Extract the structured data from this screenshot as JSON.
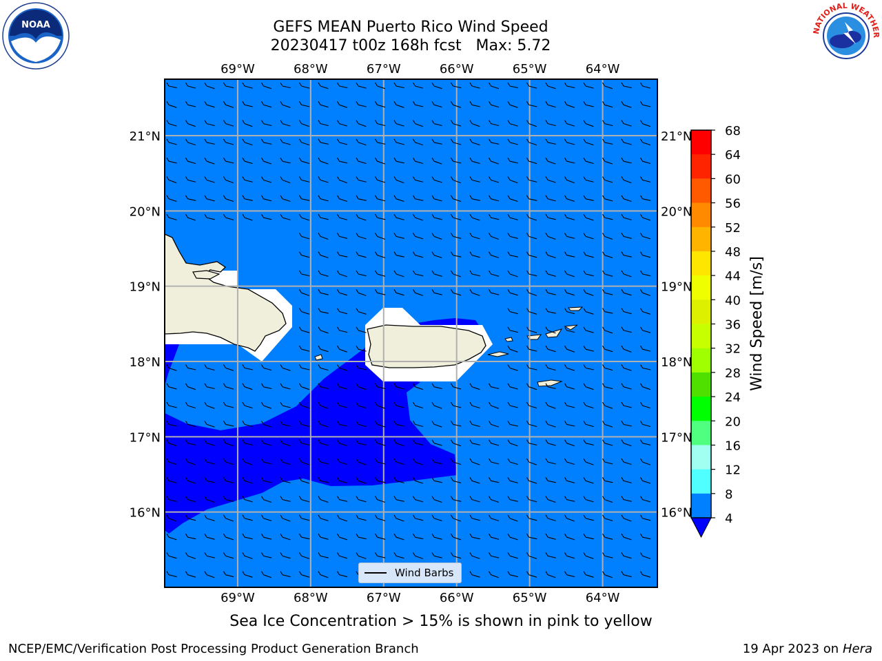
{
  "title": {
    "line1": "GEFS MEAN Puerto Rico Wind Speed",
    "line2": "20230417 t00z 168h fcst   Max: 5.72"
  },
  "logos": {
    "left": "noaa-logo",
    "right": "nws-logo",
    "left_text": "NOAA",
    "right_text": "NATIONAL WEATHER SERVICE"
  },
  "map": {
    "region": "Puerto Rico",
    "lon_ticks": [
      "69°W",
      "68°W",
      "67°W",
      "66°W",
      "65°W",
      "64°W"
    ],
    "lat_ticks": [
      "21°N",
      "20°N",
      "19°N",
      "18°N",
      "17°N",
      "16°N"
    ],
    "lon_values": [
      -69,
      -68,
      -67,
      -66,
      -65,
      -64
    ],
    "lat_values": [
      21,
      20,
      19,
      18,
      17,
      16
    ],
    "extent": {
      "lon": [
        -70,
        -63.25
      ],
      "lat": [
        15,
        21.75
      ]
    },
    "grid": true,
    "ocean_color": "#0080ff",
    "low_wind_color": "#0000ff",
    "land_color": "#efefdc",
    "gap_color": "#ffffff"
  },
  "legend": {
    "label": "Wind Barbs",
    "placement": "bottom-center"
  },
  "colorbar": {
    "label": "Wind Speed [m/s]",
    "ticks": [
      "68",
      "64",
      "60",
      "56",
      "52",
      "48",
      "44",
      "40",
      "36",
      "32",
      "28",
      "24",
      "20",
      "16",
      "12",
      "8",
      "4"
    ],
    "colors": [
      "#ff0000",
      "#ff2400",
      "#ff5a00",
      "#ff8a00",
      "#ffb400",
      "#ffe600",
      "#f0ff00",
      "#dcf000",
      "#c8ff00",
      "#a0ff00",
      "#50e000",
      "#00ff00",
      "#50ff80",
      "#a0fff0",
      "#50ffff",
      "#00ffff",
      "#00c8ff",
      "#0080ff"
    ],
    "under_color": "#0000ff"
  },
  "caption": "Sea Ice Concentration > 15% is shown in pink to yellow",
  "footer": {
    "left": "NCEP/EMC/Verification Post Processing Product Generation Branch",
    "right_date": "19 Apr 2023 on ",
    "right_host": "Hera"
  }
}
